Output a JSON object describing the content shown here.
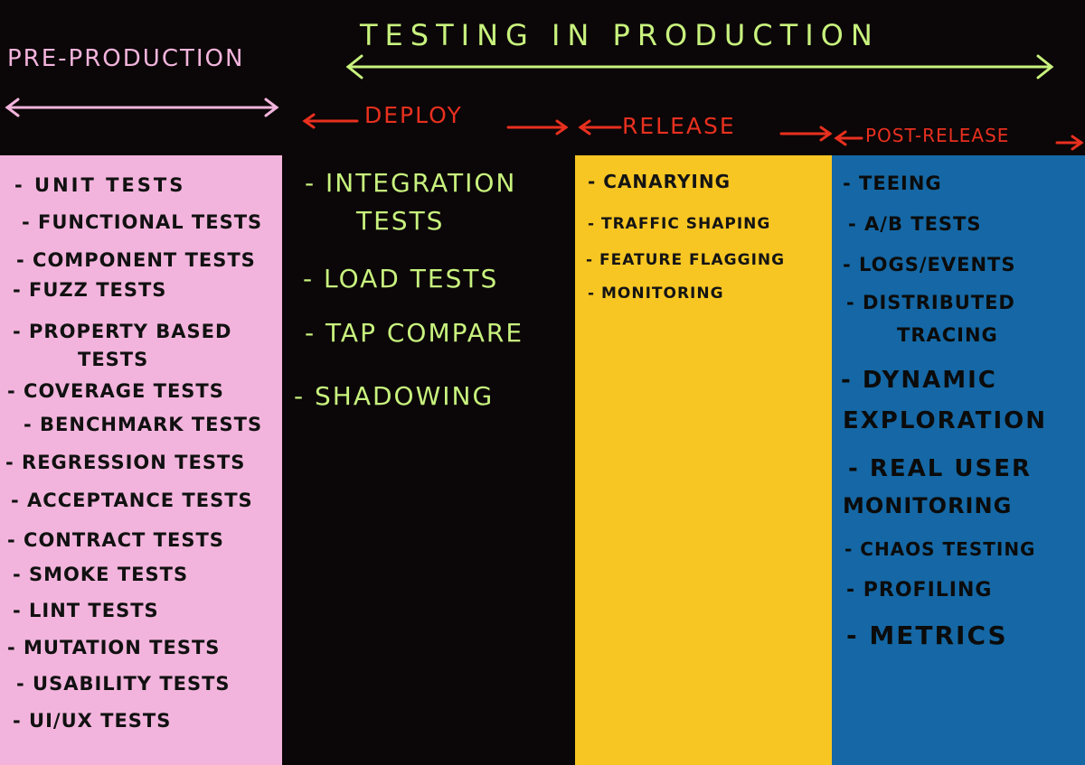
{
  "headers": {
    "pre_production": "Pre-Production",
    "testing_in_production": "Testing in Production",
    "deploy": "Deploy",
    "release": "Release",
    "post_release": "Post-Release"
  },
  "pre_production_items": [
    "- Unit tests",
    "- Functional tests",
    "- Component tests",
    "- Fuzz tests",
    "- Property based",
    "tests",
    "- Coverage tests",
    "- Benchmark tests",
    "- Regression tests",
    "- Acceptance tests",
    "- Contract tests",
    "- Smoke tests",
    "- Lint tests",
    "- Mutation tests",
    "- Usability tests",
    "- UI/UX tests"
  ],
  "deploy_items": [
    "- Integration",
    "tests",
    "- Load tests",
    "- Tap compare",
    "- Shadowing"
  ],
  "release_items": [
    "- Canarying",
    "- Traffic shaping",
    "- Feature flagging",
    "- Monitoring"
  ],
  "post_release_items": [
    "- Teeing",
    "- A/B tests",
    "- Logs/Events",
    "- Distributed",
    "tracing",
    "- Dynamic",
    "exploration",
    "- Real user",
    "monitoring",
    "- Chaos testing",
    "- Profiling",
    "- Metrics"
  ],
  "colors": {
    "background": "#0b0607",
    "pre_production": "#f2b4dc",
    "release": "#f8c623",
    "post_release": "#1568a5",
    "headline_green": "#c8f27e",
    "arrow_red": "#e8301f"
  }
}
